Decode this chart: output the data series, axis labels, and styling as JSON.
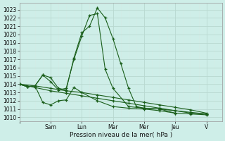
{
  "xlabel": "Pression niveau de la mer( hPa )",
  "ylim": [
    1009.5,
    1023.8
  ],
  "ytick_vals": [
    1010,
    1011,
    1012,
    1013,
    1014,
    1015,
    1016,
    1017,
    1018,
    1019,
    1020,
    1021,
    1022,
    1023
  ],
  "xtick_positions": [
    0,
    2,
    4,
    6,
    8,
    10,
    12
  ],
  "xtick_labels": [
    "",
    "Sam",
    "Lun",
    "Mar",
    "Mer",
    "Jeu",
    "V"
  ],
  "bg_color": "#ceeee8",
  "grid_major_color": "#b8d8d0",
  "grid_minor_color": "#d4ece6",
  "line_color": "#1a5e1a",
  "xlim": [
    0,
    13
  ],
  "series_x": [
    [
      0,
      0.5,
      1.0,
      1.5,
      2.0,
      2.5,
      3.0,
      3.5,
      4.0,
      4.5,
      5.0,
      5.5,
      6.0,
      6.5,
      7.0,
      7.5,
      8.0,
      9.0,
      10.0
    ],
    [
      0,
      0.5,
      1.0,
      1.5,
      2.0,
      2.5,
      3.0,
      3.5,
      4.0,
      4.5,
      5.0,
      5.5,
      6.0,
      7.0,
      8.0,
      9.0,
      10.0,
      11.0,
      12.0
    ],
    [
      0,
      0.5,
      1.0,
      1.5,
      2.0,
      2.5,
      3.0,
      3.5,
      4.0,
      5.0,
      6.0,
      7.0,
      8.0,
      9.0,
      10.0,
      11.0,
      12.0
    ],
    [
      0,
      1.0,
      2.0,
      3.0,
      4.0,
      5.0,
      6.0,
      7.0,
      8.0,
      9.0,
      10.0,
      11.0,
      12.0
    ],
    [
      0,
      1.0,
      2.0,
      3.0,
      4.0,
      5.0,
      6.0,
      7.0,
      8.0,
      9.0,
      10.0,
      11.0,
      12.0
    ]
  ],
  "series_y": [
    [
      1014.0,
      1013.7,
      1013.8,
      1015.1,
      1014.8,
      1013.5,
      1013.3,
      1017.2,
      1020.2,
      1021.0,
      1023.2,
      1022.0,
      1019.5,
      1016.5,
      1013.5,
      1011.3,
      1011.1,
      1011.0,
      1010.5
    ],
    [
      1014.0,
      1013.7,
      1013.8,
      1015.1,
      1014.3,
      1013.3,
      1013.5,
      1017.0,
      1019.8,
      1022.3,
      1022.5,
      1015.8,
      1013.5,
      1011.3,
      1011.1,
      1011.0,
      1010.8,
      1010.5,
      1010.4
    ],
    [
      1014.0,
      1013.7,
      1013.8,
      1011.8,
      1011.5,
      1012.0,
      1012.1,
      1013.6,
      1013.0,
      1012.0,
      1011.3,
      1011.1,
      1011.0,
      1010.8,
      1010.5,
      1010.4,
      1010.3
    ],
    [
      1014.0,
      1013.8,
      1013.5,
      1013.2,
      1013.0,
      1012.7,
      1012.4,
      1012.1,
      1011.8,
      1011.5,
      1011.2,
      1010.9,
      1010.5
    ],
    [
      1014.0,
      1013.6,
      1013.2,
      1012.9,
      1012.6,
      1012.3,
      1012.0,
      1011.7,
      1011.4,
      1011.1,
      1010.8,
      1010.6,
      1010.4
    ]
  ]
}
